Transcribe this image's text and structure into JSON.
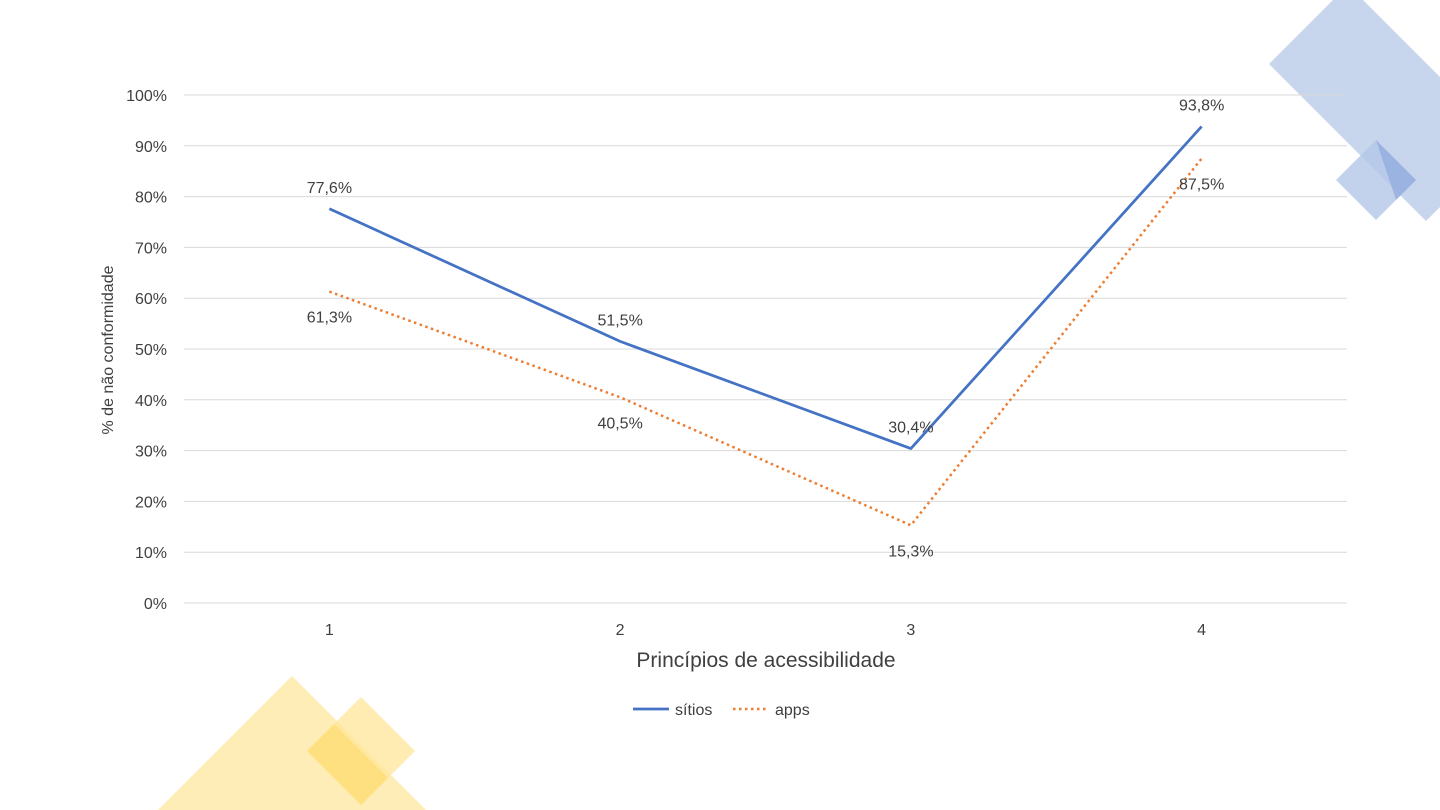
{
  "chart_data": {
    "type": "line",
    "categories": [
      "1",
      "2",
      "3",
      "4"
    ],
    "series": [
      {
        "name": "sítios",
        "values": [
          77.6,
          51.5,
          30.4,
          93.8
        ],
        "labels": [
          "77,6%",
          "51,5%",
          "30,4%",
          "93,8%"
        ],
        "color": "#4472C4",
        "style": "solid"
      },
      {
        "name": "apps",
        "values": [
          61.3,
          40.5,
          15.3,
          87.5
        ],
        "labels": [
          "61,3%",
          "40,5%",
          "15,3%",
          "87,5%"
        ],
        "color": "#ED7D31",
        "style": "dotted"
      }
    ],
    "y_ticks": [
      "0%",
      "10%",
      "20%",
      "30%",
      "40%",
      "50%",
      "60%",
      "70%",
      "80%",
      "90%",
      "100%"
    ],
    "xlabel": "Princípios de acessibilidade",
    "ylabel": "% de não conformidade",
    "ylim": [
      0,
      100
    ],
    "grid": true,
    "legend_position": "bottom"
  },
  "decor": {
    "blue": "#B4C7E7",
    "blue_dark": "#8FAADC",
    "yellow": "#FFE699",
    "yellow_dark": "#FFD966"
  }
}
